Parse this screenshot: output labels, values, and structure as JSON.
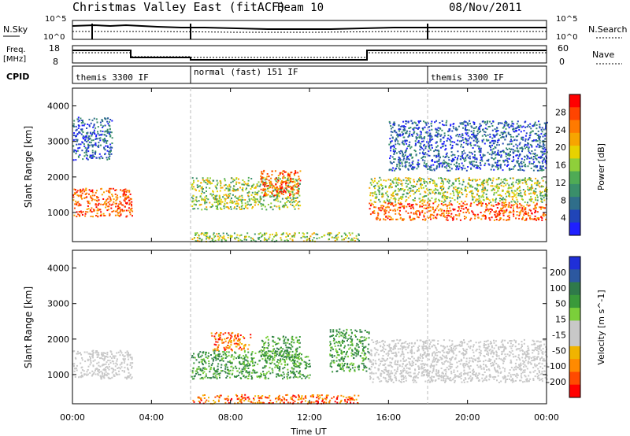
{
  "header": {
    "title": "Christmas Valley East (fitACF)",
    "beam": "Beam 10",
    "date": "08/Nov/2011"
  },
  "panels": {
    "nsky": {
      "label": "N.Sky",
      "yticks": [
        "10^5",
        "10^0"
      ],
      "right_label": "N.Search",
      "right_yticks": [
        "10^5",
        "10^0"
      ]
    },
    "freq": {
      "label_top": "Freq.",
      "label_bottom": "[MHz]",
      "yticks": [
        "18",
        "8"
      ],
      "right_label": "Nave",
      "right_yticks": [
        "60",
        "0"
      ]
    },
    "cpid": {
      "label": "CPID",
      "segments": [
        "themis 3300 IF",
        "normal (fast) 151 IF",
        "themis 3300 IF"
      ]
    }
  },
  "colors": {
    "power": [
      "#1f1fff",
      "#2045b8",
      "#2f6e8a",
      "#3a8f6a",
      "#4fab55",
      "#8fcf3a",
      "#e8d200",
      "#f7a500",
      "#ff7a00",
      "#ff4400",
      "#ff0000"
    ],
    "velocity": [
      "#1f2fd8",
      "#2c58a0",
      "#2f7a4a",
      "#3a9a3a",
      "#7bcf3a",
      "#c8c8c8",
      "#c8c8c8",
      "#f0b400",
      "#ff8a00",
      "#ff4a00",
      "#ff0000"
    ]
  },
  "chart_data": [
    {
      "type": "heatmap",
      "name": "Power",
      "xlabel": "Time UT",
      "ylabel": "Slant Range [km]",
      "xticks": [
        "00:00",
        "04:00",
        "08:00",
        "12:00",
        "16:00",
        "20:00",
        "00:00"
      ],
      "yticks": [
        1000,
        2000,
        3000,
        4000
      ],
      "xlim": [
        0,
        24
      ],
      "ylim": [
        180,
        4500
      ],
      "colorbar": {
        "label": "Power [dB]",
        "ticks": [
          4,
          8,
          12,
          16,
          20,
          24,
          28
        ]
      },
      "features": [
        {
          "t": [
            0.0,
            3.0
          ],
          "r": [
            900,
            1700
          ],
          "level": "high"
        },
        {
          "t": [
            0.0,
            2.0
          ],
          "r": [
            2500,
            3700
          ],
          "level": "low"
        },
        {
          "t": [
            6.0,
            11.5
          ],
          "r": [
            1100,
            2000
          ],
          "level": "medium"
        },
        {
          "t": [
            9.5,
            11.5
          ],
          "r": [
            1500,
            2200
          ],
          "level": "high"
        },
        {
          "t": [
            15.0,
            24.0
          ],
          "r": [
            800,
            1300
          ],
          "level": "high"
        },
        {
          "t": [
            15.0,
            24.0
          ],
          "r": [
            1300,
            2000
          ],
          "level": "medium"
        },
        {
          "t": [
            16.0,
            24.0
          ],
          "r": [
            2200,
            3600
          ],
          "level": "low"
        },
        {
          "t": [
            6.0,
            14.5
          ],
          "r": [
            200,
            450
          ],
          "level": "medium"
        }
      ]
    },
    {
      "type": "heatmap",
      "name": "Velocity",
      "xlabel": "Time UT",
      "ylabel": "Slant Range [km]",
      "xticks": [
        "00:00",
        "04:00",
        "08:00",
        "12:00",
        "16:00",
        "20:00",
        "00:00"
      ],
      "yticks": [
        1000,
        2000,
        3000,
        4000
      ],
      "xlim": [
        0,
        24
      ],
      "ylim": [
        180,
        4500
      ],
      "colorbar": {
        "label": "Velocity [m s^-1]",
        "ticks": [
          200,
          100,
          50,
          15,
          -15,
          -50,
          -100,
          -200
        ]
      },
      "features": [
        {
          "t": [
            0.0,
            3.0
          ],
          "r": [
            900,
            1700
          ],
          "level": "ground"
        },
        {
          "t": [
            6.0,
            12.0
          ],
          "r": [
            900,
            1700
          ],
          "level": "positive"
        },
        {
          "t": [
            7.0,
            9.0
          ],
          "r": [
            1700,
            2200
          ],
          "level": "negative"
        },
        {
          "t": [
            9.5,
            11.5
          ],
          "r": [
            1400,
            2100
          ],
          "level": "positive"
        },
        {
          "t": [
            13.0,
            15.0
          ],
          "r": [
            1100,
            2300
          ],
          "level": "positive"
        },
        {
          "t": [
            15.0,
            24.0
          ],
          "r": [
            800,
            2000
          ],
          "level": "ground"
        },
        {
          "t": [
            6.0,
            14.5
          ],
          "r": [
            200,
            450
          ],
          "level": "negative"
        }
      ]
    }
  ]
}
